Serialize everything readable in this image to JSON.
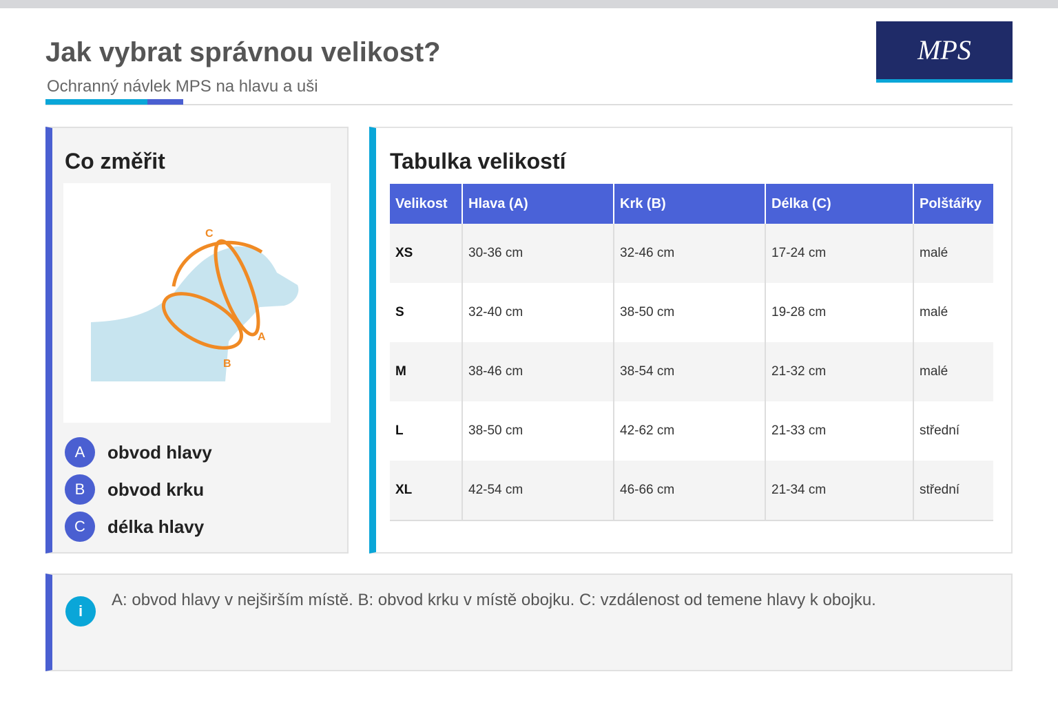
{
  "header": {
    "title": "Jak vybrat správnou velikost?",
    "subtitle": "Ochranný návlek MPS na hlavu a uši",
    "logo": "MPS"
  },
  "measure": {
    "title": "Co změřit",
    "diagram_labels": [
      "A",
      "B",
      "C"
    ],
    "legend": [
      {
        "key": "A",
        "label": "obvod hlavy"
      },
      {
        "key": "B",
        "label": "obvod krku"
      },
      {
        "key": "C",
        "label": "délka hlavy"
      }
    ]
  },
  "table": {
    "title": "Tabulka velikostí",
    "columns": [
      "Velikost",
      "Hlava (A)",
      "Krk (B)",
      "Délka (C)",
      "Polštářky"
    ],
    "rows": [
      [
        "XS",
        "30-36 cm",
        "32-46 cm",
        "17-24 cm",
        "malé"
      ],
      [
        "S",
        "32-40 cm",
        "38-50 cm",
        "19-28 cm",
        "malé"
      ],
      [
        "M",
        "38-46 cm",
        "38-54 cm",
        "21-32 cm",
        "malé"
      ],
      [
        "L",
        "38-50 cm",
        "42-62 cm",
        "21-33 cm",
        "střední"
      ],
      [
        "XL",
        "42-54 cm",
        "46-66 cm",
        "21-34 cm",
        "střední"
      ]
    ]
  },
  "note": {
    "icon": "i",
    "text": "A: obvod hlavy v nejširším místě. B: obvod krku v místě obojku. C: vzdálenost od temene hlavy k obojku."
  }
}
